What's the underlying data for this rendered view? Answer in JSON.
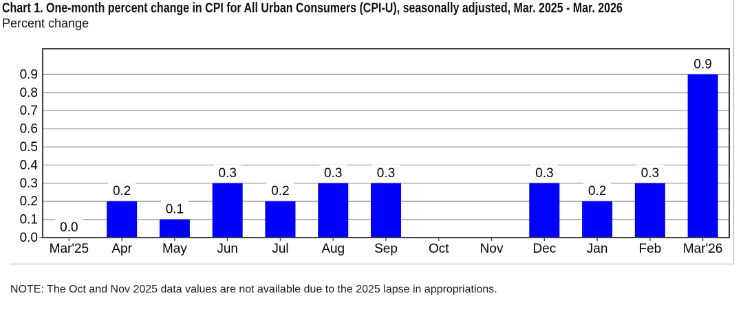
{
  "header": {
    "title": "Chart 1. One-month percent change in CPI for All Urban Consumers (CPI-U), seasonally adjusted, Mar. 2025 - Mar. 2026",
    "subtitle": "Percent change"
  },
  "chart_data": {
    "type": "bar",
    "title": "Chart 1. One-month percent change in CPI for All Urban Consumers (CPI-U), seasonally adjusted, Mar. 2025 - Mar. 2026",
    "ylabel": "Percent change",
    "xlabel": "",
    "categories": [
      "Mar'25",
      "Apr",
      "May",
      "Jun",
      "Jul",
      "Aug",
      "Sep",
      "Oct",
      "Nov",
      "Dec",
      "Jan",
      "Feb",
      "Mar'26"
    ],
    "values": [
      0.0,
      0.2,
      0.1,
      0.3,
      0.2,
      0.3,
      0.3,
      null,
      null,
      0.3,
      0.2,
      0.3,
      0.9
    ],
    "value_labels": [
      "0.0",
      "0.2",
      "0.1",
      "0.3",
      "0.2",
      "0.3",
      "0.3",
      "",
      "",
      "0.3",
      "0.2",
      "0.3",
      "0.9"
    ],
    "missing_categories": [
      "Oct",
      "Nov"
    ],
    "yticks": [
      "0.0",
      "0.1",
      "0.2",
      "0.3",
      "0.4",
      "0.5",
      "0.6",
      "0.7",
      "0.8",
      "0.9"
    ],
    "ylim": [
      0,
      1.04
    ],
    "grid": true,
    "legend_position": "none",
    "bar_color": "#0000fb",
    "grid_color": "#a6a6a6",
    "axis_color": "#3f3f3f",
    "label_color": "#000000"
  },
  "note": {
    "text": "NOTE: The Oct and Nov 2025 data values are not available due to the 2025 lapse in appropriations."
  }
}
